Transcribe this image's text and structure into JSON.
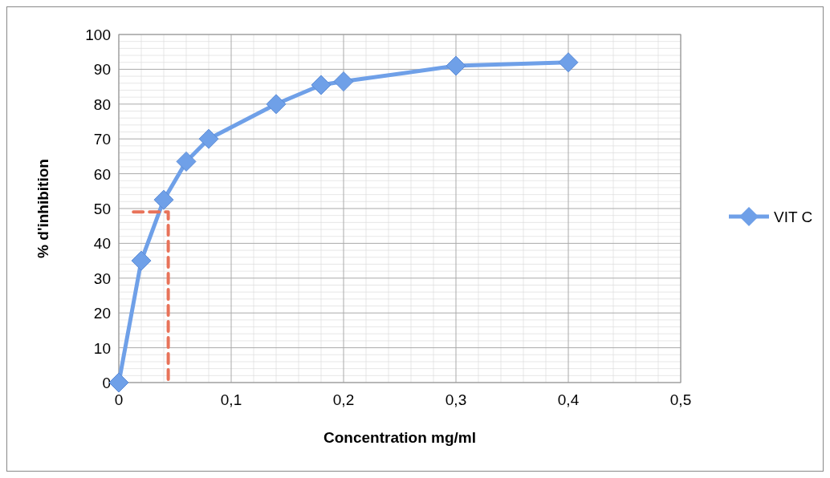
{
  "chart_data": {
    "type": "line",
    "xlabel": "Concentration mg/ml",
    "ylabel": "% d'inhibition",
    "xlim": [
      0,
      0.5
    ],
    "xticks": [
      {
        "value": 0,
        "label": "0"
      },
      {
        "value": 0.1,
        "label": "0,1"
      },
      {
        "value": 0.2,
        "label": "0,2"
      },
      {
        "value": 0.3,
        "label": "0,3"
      },
      {
        "value": 0.4,
        "label": "0,4"
      },
      {
        "value": 0.5,
        "label": "0,5"
      }
    ],
    "ylim": [
      0,
      100
    ],
    "yticks": [
      0,
      10,
      20,
      30,
      40,
      50,
      60,
      70,
      80,
      90,
      100
    ],
    "grid": true,
    "legend": "right",
    "marker": "diamond",
    "line_style": "solid",
    "series": [
      {
        "name": "VIT C",
        "color": "#6fa0e8",
        "x": [
          0,
          0.02,
          0.04,
          0.06,
          0.08,
          0.14,
          0.18,
          0.2,
          0.3,
          0.4
        ],
        "values": [
          0,
          35,
          52.5,
          63.5,
          70,
          80,
          85.5,
          86.5,
          91,
          92
        ]
      },
      {
        "color": "#e8735a",
        "x": [
          0.013,
          0.044,
          0.044
        ],
        "values": [
          49,
          49,
          0
        ],
        "marker": "none",
        "line_style": "dashed"
      }
    ]
  }
}
